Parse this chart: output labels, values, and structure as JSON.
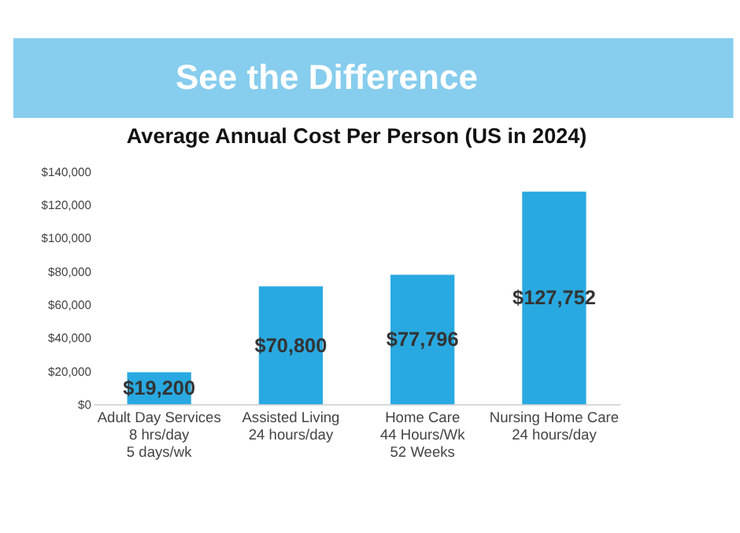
{
  "chart_data": {
    "type": "bar",
    "title": "See the Difference",
    "subtitle": "Average Annual Cost Per Person (US in 2024)",
    "categories": [
      "Adult Day Services\n8 hrs/day\n5 days/wk",
      "Assisted Living\n24 hours/day",
      "Home Care\n44 Hours/Wk\n52 Weeks",
      "Nursing Home Care\n24 hours/day"
    ],
    "values": [
      19200,
      70800,
      77796,
      127752
    ],
    "value_labels": [
      "$19,200",
      "$70,800",
      "$77,796",
      "$127,752"
    ],
    "color": "#29a9e1",
    "ylim": [
      0,
      140000
    ],
    "yticks": [
      {
        "value": 0,
        "label": "$0"
      },
      {
        "value": 20000,
        "label": "$20,000"
      },
      {
        "value": 40000,
        "label": "$40,000"
      },
      {
        "value": 60000,
        "label": "$60,000"
      },
      {
        "value": 80000,
        "label": "$80,000"
      },
      {
        "value": 100000,
        "label": "$100,000"
      },
      {
        "value": 120000,
        "label": "$120,000"
      },
      {
        "value": 140000,
        "label": "$140,000"
      }
    ],
    "grid": false
  }
}
